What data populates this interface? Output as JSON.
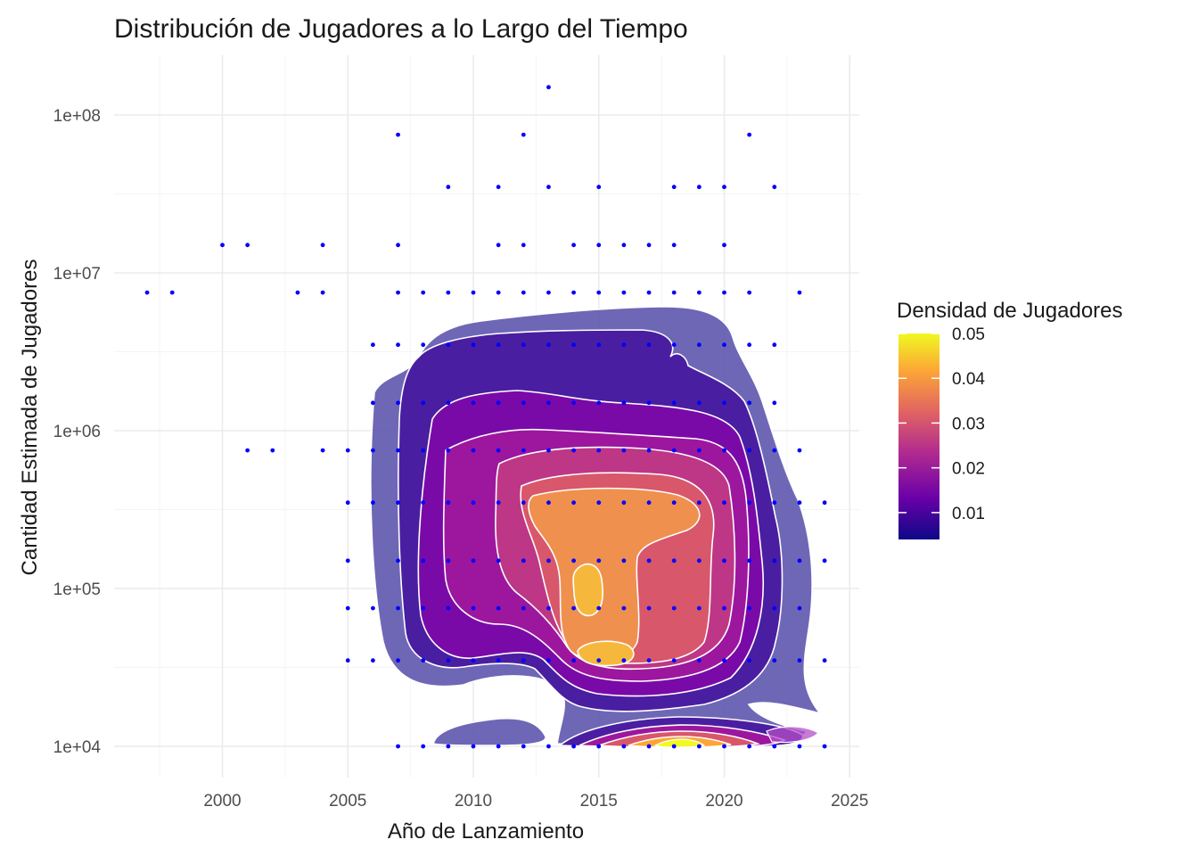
{
  "chart_data": {
    "type": "scatter",
    "title": "Distribución de Jugadores a lo Largo del Tiempo",
    "xlabel": "Año de Lanzamiento",
    "ylabel": "Cantidad Estimada de Jugadores",
    "x_ticks": [
      2000,
      2005,
      2010,
      2015,
      2020,
      2025
    ],
    "y_ticks": [
      10000,
      100000,
      1000000,
      10000000,
      100000000
    ],
    "y_tick_labels": [
      "1e+04",
      "1e+05",
      "1e+06",
      "1e+07",
      "1e+08"
    ],
    "xlim": [
      1996,
      2025
    ],
    "ylim": [
      6000,
      200000000
    ],
    "y_scale": "log10",
    "grid": true,
    "point_color": "#0000ff",
    "points": [
      {
        "x": 2013,
        "y": 150000000
      },
      {
        "x": 2007,
        "y": 75000000
      },
      {
        "x": 2012,
        "y": 75000000
      },
      {
        "x": 2021,
        "y": 75000000
      },
      {
        "x": 2009,
        "y": 35000000
      },
      {
        "x": 2011,
        "y": 35000000
      },
      {
        "x": 2013,
        "y": 35000000
      },
      {
        "x": 2015,
        "y": 35000000
      },
      {
        "x": 2018,
        "y": 35000000
      },
      {
        "x": 2019,
        "y": 35000000
      },
      {
        "x": 2020,
        "y": 35000000
      },
      {
        "x": 2022,
        "y": 35000000
      },
      {
        "x": 2000,
        "y": 15000000
      },
      {
        "x": 2001,
        "y": 15000000
      },
      {
        "x": 2004,
        "y": 15000000
      },
      {
        "x": 2007,
        "y": 15000000
      },
      {
        "x": 2011,
        "y": 15000000
      },
      {
        "x": 2012,
        "y": 15000000
      },
      {
        "x": 2014,
        "y": 15000000
      },
      {
        "x": 2015,
        "y": 15000000
      },
      {
        "x": 2016,
        "y": 15000000
      },
      {
        "x": 2017,
        "y": 15000000
      },
      {
        "x": 2018,
        "y": 15000000
      },
      {
        "x": 2020,
        "y": 15000000
      },
      {
        "x": 1997,
        "y": 7500000
      },
      {
        "x": 1998,
        "y": 7500000
      },
      {
        "x": 2003,
        "y": 7500000
      },
      {
        "x": 2004,
        "y": 7500000
      },
      {
        "x": 2007,
        "y": 7500000
      },
      {
        "x": 2008,
        "y": 7500000
      },
      {
        "x": 2009,
        "y": 7500000
      },
      {
        "x": 2010,
        "y": 7500000
      },
      {
        "x": 2011,
        "y": 7500000
      },
      {
        "x": 2012,
        "y": 7500000
      },
      {
        "x": 2013,
        "y": 7500000
      },
      {
        "x": 2014,
        "y": 7500000
      },
      {
        "x": 2015,
        "y": 7500000
      },
      {
        "x": 2016,
        "y": 7500000
      },
      {
        "x": 2017,
        "y": 7500000
      },
      {
        "x": 2018,
        "y": 7500000
      },
      {
        "x": 2019,
        "y": 7500000
      },
      {
        "x": 2020,
        "y": 7500000
      },
      {
        "x": 2021,
        "y": 7500000
      },
      {
        "x": 2023,
        "y": 7500000
      },
      {
        "x": 2006,
        "y": 3500000
      },
      {
        "x": 2007,
        "y": 3500000
      },
      {
        "x": 2008,
        "y": 3500000
      },
      {
        "x": 2009,
        "y": 3500000
      },
      {
        "x": 2010,
        "y": 3500000
      },
      {
        "x": 2011,
        "y": 3500000
      },
      {
        "x": 2012,
        "y": 3500000
      },
      {
        "x": 2013,
        "y": 3500000
      },
      {
        "x": 2014,
        "y": 3500000
      },
      {
        "x": 2015,
        "y": 3500000
      },
      {
        "x": 2016,
        "y": 3500000
      },
      {
        "x": 2017,
        "y": 3500000
      },
      {
        "x": 2018,
        "y": 3500000
      },
      {
        "x": 2019,
        "y": 3500000
      },
      {
        "x": 2020,
        "y": 3500000
      },
      {
        "x": 2021,
        "y": 3500000
      },
      {
        "x": 2022,
        "y": 3500000
      },
      {
        "x": 2006,
        "y": 1500000
      },
      {
        "x": 2007,
        "y": 1500000
      },
      {
        "x": 2008,
        "y": 1500000
      },
      {
        "x": 2009,
        "y": 1500000
      },
      {
        "x": 2010,
        "y": 1500000
      },
      {
        "x": 2011,
        "y": 1500000
      },
      {
        "x": 2012,
        "y": 1500000
      },
      {
        "x": 2013,
        "y": 1500000
      },
      {
        "x": 2014,
        "y": 1500000
      },
      {
        "x": 2015,
        "y": 1500000
      },
      {
        "x": 2016,
        "y": 1500000
      },
      {
        "x": 2017,
        "y": 1500000
      },
      {
        "x": 2018,
        "y": 1500000
      },
      {
        "x": 2019,
        "y": 1500000
      },
      {
        "x": 2020,
        "y": 1500000
      },
      {
        "x": 2021,
        "y": 1500000
      },
      {
        "x": 2022,
        "y": 1500000
      },
      {
        "x": 2001,
        "y": 750000
      },
      {
        "x": 2002,
        "y": 750000
      },
      {
        "x": 2004,
        "y": 750000
      },
      {
        "x": 2005,
        "y": 750000
      },
      {
        "x": 2006,
        "y": 750000
      },
      {
        "x": 2007,
        "y": 750000
      },
      {
        "x": 2008,
        "y": 750000
      },
      {
        "x": 2009,
        "y": 750000
      },
      {
        "x": 2010,
        "y": 750000
      },
      {
        "x": 2011,
        "y": 750000
      },
      {
        "x": 2012,
        "y": 750000
      },
      {
        "x": 2013,
        "y": 750000
      },
      {
        "x": 2014,
        "y": 750000
      },
      {
        "x": 2015,
        "y": 750000
      },
      {
        "x": 2016,
        "y": 750000
      },
      {
        "x": 2017,
        "y": 750000
      },
      {
        "x": 2018,
        "y": 750000
      },
      {
        "x": 2019,
        "y": 750000
      },
      {
        "x": 2020,
        "y": 750000
      },
      {
        "x": 2021,
        "y": 750000
      },
      {
        "x": 2022,
        "y": 750000
      },
      {
        "x": 2023,
        "y": 750000
      },
      {
        "x": 2005,
        "y": 350000
      },
      {
        "x": 2006,
        "y": 350000
      },
      {
        "x": 2007,
        "y": 350000
      },
      {
        "x": 2008,
        "y": 350000
      },
      {
        "x": 2009,
        "y": 350000
      },
      {
        "x": 2010,
        "y": 350000
      },
      {
        "x": 2011,
        "y": 350000
      },
      {
        "x": 2012,
        "y": 350000
      },
      {
        "x": 2013,
        "y": 350000
      },
      {
        "x": 2014,
        "y": 350000
      },
      {
        "x": 2015,
        "y": 350000
      },
      {
        "x": 2016,
        "y": 350000
      },
      {
        "x": 2017,
        "y": 350000
      },
      {
        "x": 2018,
        "y": 350000
      },
      {
        "x": 2019,
        "y": 350000
      },
      {
        "x": 2020,
        "y": 350000
      },
      {
        "x": 2021,
        "y": 350000
      },
      {
        "x": 2022,
        "y": 350000
      },
      {
        "x": 2023,
        "y": 350000
      },
      {
        "x": 2024,
        "y": 350000
      },
      {
        "x": 2005,
        "y": 150000
      },
      {
        "x": 2007,
        "y": 150000
      },
      {
        "x": 2008,
        "y": 150000
      },
      {
        "x": 2009,
        "y": 150000
      },
      {
        "x": 2010,
        "y": 150000
      },
      {
        "x": 2011,
        "y": 150000
      },
      {
        "x": 2012,
        "y": 150000
      },
      {
        "x": 2013,
        "y": 150000
      },
      {
        "x": 2014,
        "y": 150000
      },
      {
        "x": 2015,
        "y": 150000
      },
      {
        "x": 2016,
        "y": 150000
      },
      {
        "x": 2017,
        "y": 150000
      },
      {
        "x": 2018,
        "y": 150000
      },
      {
        "x": 2019,
        "y": 150000
      },
      {
        "x": 2020,
        "y": 150000
      },
      {
        "x": 2021,
        "y": 150000
      },
      {
        "x": 2022,
        "y": 150000
      },
      {
        "x": 2023,
        "y": 150000
      },
      {
        "x": 2024,
        "y": 150000
      },
      {
        "x": 2005,
        "y": 75000
      },
      {
        "x": 2006,
        "y": 75000
      },
      {
        "x": 2007,
        "y": 75000
      },
      {
        "x": 2008,
        "y": 75000
      },
      {
        "x": 2009,
        "y": 75000
      },
      {
        "x": 2010,
        "y": 75000
      },
      {
        "x": 2011,
        "y": 75000
      },
      {
        "x": 2012,
        "y": 75000
      },
      {
        "x": 2013,
        "y": 75000
      },
      {
        "x": 2014,
        "y": 75000
      },
      {
        "x": 2015,
        "y": 75000
      },
      {
        "x": 2016,
        "y": 75000
      },
      {
        "x": 2017,
        "y": 75000
      },
      {
        "x": 2018,
        "y": 75000
      },
      {
        "x": 2019,
        "y": 75000
      },
      {
        "x": 2020,
        "y": 75000
      },
      {
        "x": 2021,
        "y": 75000
      },
      {
        "x": 2022,
        "y": 75000
      },
      {
        "x": 2023,
        "y": 75000
      },
      {
        "x": 2005,
        "y": 35000
      },
      {
        "x": 2006,
        "y": 35000
      },
      {
        "x": 2007,
        "y": 35000
      },
      {
        "x": 2008,
        "y": 35000
      },
      {
        "x": 2009,
        "y": 35000
      },
      {
        "x": 2010,
        "y": 35000
      },
      {
        "x": 2011,
        "y": 35000
      },
      {
        "x": 2012,
        "y": 35000
      },
      {
        "x": 2013,
        "y": 35000
      },
      {
        "x": 2014,
        "y": 35000
      },
      {
        "x": 2015,
        "y": 35000
      },
      {
        "x": 2016,
        "y": 35000
      },
      {
        "x": 2017,
        "y": 35000
      },
      {
        "x": 2018,
        "y": 35000
      },
      {
        "x": 2019,
        "y": 35000
      },
      {
        "x": 2020,
        "y": 35000
      },
      {
        "x": 2021,
        "y": 35000
      },
      {
        "x": 2022,
        "y": 35000
      },
      {
        "x": 2023,
        "y": 35000
      },
      {
        "x": 2024,
        "y": 35000
      },
      {
        "x": 2007,
        "y": 10000
      },
      {
        "x": 2008,
        "y": 10000
      },
      {
        "x": 2009,
        "y": 10000
      },
      {
        "x": 2010,
        "y": 10000
      },
      {
        "x": 2011,
        "y": 10000
      },
      {
        "x": 2012,
        "y": 10000
      },
      {
        "x": 2013,
        "y": 10000
      },
      {
        "x": 2014,
        "y": 10000
      },
      {
        "x": 2015,
        "y": 10000
      },
      {
        "x": 2016,
        "y": 10000
      },
      {
        "x": 2017,
        "y": 10000
      },
      {
        "x": 2018,
        "y": 10000
      },
      {
        "x": 2019,
        "y": 10000
      },
      {
        "x": 2020,
        "y": 10000
      },
      {
        "x": 2021,
        "y": 10000
      },
      {
        "x": 2022,
        "y": 10000
      },
      {
        "x": 2023,
        "y": 10000
      },
      {
        "x": 2024,
        "y": 10000
      }
    ],
    "density_layer": {
      "kind": "filled-contours",
      "contour_line_color": "#ffffff",
      "peaks": [
        {
          "x": 2018,
          "y": 10000
        },
        {
          "x": 2014.5,
          "y": 35000
        },
        {
          "x": 2014.3,
          "y": 100000
        },
        {
          "x": 2015,
          "y": 350000
        }
      ]
    },
    "legend": {
      "title": "Densidad de Jugadores",
      "position": "right",
      "type": "colorbar",
      "range": [
        0.004,
        0.05
      ],
      "tick_values": [
        0.01,
        0.02,
        0.03,
        0.04,
        0.05
      ],
      "tick_labels": [
        "0.01",
        "0.02",
        "0.03",
        "0.04",
        "0.05"
      ],
      "palette": [
        "#0d0887",
        "#6a00a8",
        "#b12a90",
        "#e16462",
        "#fca636",
        "#f0f921"
      ]
    }
  }
}
